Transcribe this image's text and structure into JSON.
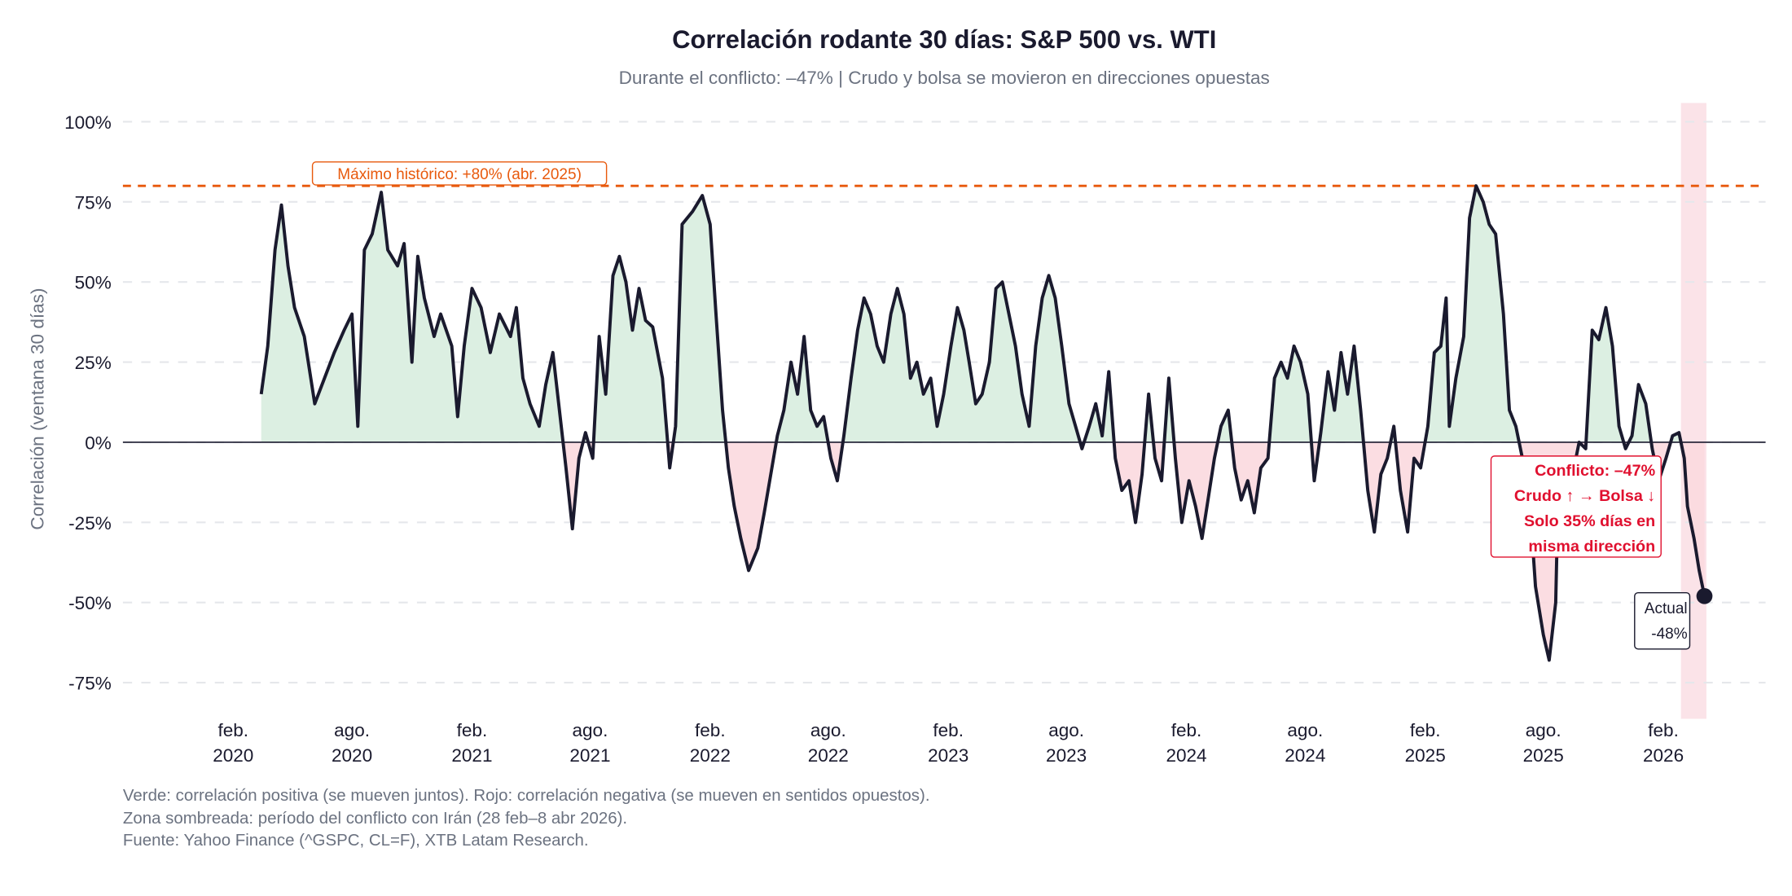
{
  "chart_data": {
    "type": "area",
    "title": "Correlación rodante 30 días: S&P 500 vs. WTI",
    "subtitle": "Durante el conflicto: –47% | Crudo y bolsa se movieron en direcciones opuestas",
    "xlabel": "",
    "ylabel": "Correlación (ventana 30 días)",
    "ylim": [
      -0.82,
      1.03
    ],
    "yticks": [
      1.0,
      0.75,
      0.5,
      0.25,
      0.0,
      -0.25,
      -0.5,
      -0.75
    ],
    "ytick_labels": [
      "100%",
      "75%",
      "50%",
      "25%",
      "0%",
      "-25%",
      "-50%",
      "-75%"
    ],
    "xlim": [
      "2019-09-15",
      "2026-09-01"
    ],
    "xticks": [
      "2020-02-01",
      "2020-08-01",
      "2021-02-01",
      "2021-08-01",
      "2022-02-01",
      "2022-08-01",
      "2023-02-01",
      "2023-08-01",
      "2024-02-01",
      "2024-08-01",
      "2025-02-01",
      "2025-08-01",
      "2026-02-01"
    ],
    "xtick_labels": [
      [
        "feb.",
        "2020"
      ],
      [
        "ago.",
        "2020"
      ],
      [
        "feb.",
        "2021"
      ],
      [
        "ago.",
        "2021"
      ],
      [
        "feb.",
        "2022"
      ],
      [
        "ago.",
        "2022"
      ],
      [
        "feb.",
        "2023"
      ],
      [
        "ago.",
        "2023"
      ],
      [
        "feb.",
        "2024"
      ],
      [
        "ago.",
        "2024"
      ],
      [
        "feb.",
        "2025"
      ],
      [
        "ago.",
        "2025"
      ],
      [
        "feb.",
        "2026"
      ]
    ],
    "grid": "horizontal dashed",
    "colors": {
      "line": "#1a1a2e",
      "positive_fill": "#dcefe2",
      "negative_fill": "#fbd9df",
      "max_line": "#e8590c",
      "conflict_shade": "#fbe3e8",
      "annotation_red": "#e0102f",
      "grid": "#e5e7eb"
    },
    "series": [
      {
        "x": [
          "2020-03-15",
          "2020-03-25",
          "2020-04-05",
          "2020-04-15",
          "2020-04-25",
          "2020-05-05",
          "2020-05-20",
          "2020-06-05",
          "2020-06-20",
          "2020-07-05",
          "2020-07-20",
          "2020-08-01",
          "2020-08-10",
          "2020-08-20",
          "2020-09-01",
          "2020-09-15",
          "2020-09-25",
          "2020-10-10",
          "2020-10-20",
          "2020-11-01",
          "2020-11-10",
          "2020-11-20",
          "2020-12-05",
          "2020-12-15",
          "2021-01-01",
          "2021-01-10",
          "2021-01-20",
          "2021-02-01",
          "2021-02-15",
          "2021-03-01",
          "2021-03-15",
          "2021-04-01",
          "2021-04-10",
          "2021-04-20",
          "2021-05-01",
          "2021-05-15",
          "2021-05-25",
          "2021-06-05",
          "2021-06-15",
          "2021-06-25",
          "2021-07-05",
          "2021-07-15",
          "2021-07-25",
          "2021-08-05",
          "2021-08-15",
          "2021-08-25",
          "2021-09-05",
          "2021-09-15",
          "2021-09-25",
          "2021-10-05",
          "2021-10-15",
          "2021-10-25",
          "2021-11-05",
          "2021-11-20",
          "2021-12-01",
          "2021-12-10",
          "2021-12-20",
          "2022-01-05",
          "2022-01-20",
          "2022-02-01",
          "2022-02-10",
          "2022-02-20",
          "2022-03-01",
          "2022-03-10",
          "2022-03-20",
          "2022-04-01",
          "2022-04-15",
          "2022-04-25",
          "2022-05-05",
          "2022-05-15",
          "2022-05-25",
          "2022-06-05",
          "2022-06-15",
          "2022-06-25",
          "2022-07-05",
          "2022-07-15",
          "2022-07-25",
          "2022-08-05",
          "2022-08-15",
          "2022-08-25",
          "2022-09-05",
          "2022-09-15",
          "2022-09-25",
          "2022-10-05",
          "2022-10-15",
          "2022-10-25",
          "2022-11-05",
          "2022-11-15",
          "2022-11-25",
          "2022-12-05",
          "2022-12-15",
          "2022-12-25",
          "2023-01-05",
          "2023-01-15",
          "2023-01-25",
          "2023-02-05",
          "2023-02-15",
          "2023-02-25",
          "2023-03-05",
          "2023-03-15",
          "2023-03-25",
          "2023-04-05",
          "2023-04-15",
          "2023-04-25",
          "2023-05-05",
          "2023-05-15",
          "2023-05-25",
          "2023-06-05",
          "2023-06-15",
          "2023-06-25",
          "2023-07-05",
          "2023-07-15",
          "2023-07-25",
          "2023-08-05",
          "2023-08-15",
          "2023-08-25",
          "2023-09-05",
          "2023-09-15",
          "2023-09-25",
          "2023-10-05",
          "2023-10-15",
          "2023-10-25",
          "2023-11-05",
          "2023-11-15",
          "2023-11-25",
          "2023-12-05",
          "2023-12-15",
          "2023-12-25",
          "2024-01-05",
          "2024-01-15",
          "2024-01-25",
          "2024-02-05",
          "2024-02-15",
          "2024-02-25",
          "2024-03-05",
          "2024-03-15",
          "2024-03-25",
          "2024-04-05",
          "2024-04-15",
          "2024-04-25",
          "2024-05-05",
          "2024-05-15",
          "2024-05-25",
          "2024-06-05",
          "2024-06-15",
          "2024-06-25",
          "2024-07-05",
          "2024-07-15",
          "2024-07-25",
          "2024-08-05",
          "2024-08-15",
          "2024-08-25",
          "2024-09-05",
          "2024-09-15",
          "2024-09-25",
          "2024-10-05",
          "2024-10-15",
          "2024-10-25",
          "2024-11-05",
          "2024-11-15",
          "2024-11-25",
          "2024-12-05",
          "2024-12-15",
          "2024-12-25",
          "2025-01-05",
          "2025-01-15",
          "2025-01-25",
          "2025-02-05",
          "2025-02-15",
          "2025-02-25",
          "2025-03-05",
          "2025-03-10",
          "2025-03-20",
          "2025-04-01",
          "2025-04-10",
          "2025-04-20",
          "2025-05-01",
          "2025-05-10",
          "2025-05-20",
          "2025-06-01",
          "2025-06-10",
          "2025-06-20",
          "2025-06-30",
          "2025-07-10",
          "2025-07-20",
          "2025-08-01",
          "2025-08-10",
          "2025-08-20",
          "2025-08-25",
          "2025-09-05",
          "2025-09-15",
          "2025-09-25",
          "2025-10-05",
          "2025-10-15",
          "2025-10-25",
          "2025-11-05",
          "2025-11-15",
          "2025-11-25",
          "2025-12-05",
          "2025-12-15",
          "2025-12-25",
          "2026-01-05",
          "2026-01-15",
          "2026-01-25",
          "2026-02-05",
          "2026-02-15",
          "2026-02-25",
          "2026-03-05",
          "2026-03-10",
          "2026-03-20",
          "2026-03-28",
          "2026-04-05"
        ],
        "y": [
          0.15,
          0.3,
          0.6,
          0.74,
          0.55,
          0.42,
          0.33,
          0.12,
          0.2,
          0.28,
          0.35,
          0.4,
          0.05,
          0.6,
          0.65,
          0.78,
          0.6,
          0.55,
          0.62,
          0.25,
          0.58,
          0.45,
          0.33,
          0.4,
          0.3,
          0.08,
          0.3,
          0.48,
          0.42,
          0.28,
          0.4,
          0.33,
          0.42,
          0.2,
          0.12,
          0.05,
          0.18,
          0.28,
          0.1,
          -0.08,
          -0.27,
          -0.05,
          0.03,
          -0.05,
          0.33,
          0.15,
          0.52,
          0.58,
          0.5,
          0.35,
          0.48,
          0.38,
          0.36,
          0.2,
          -0.08,
          0.05,
          0.68,
          0.72,
          0.77,
          0.68,
          0.4,
          0.1,
          -0.08,
          -0.2,
          -0.3,
          -0.4,
          -0.33,
          -0.22,
          -0.1,
          0.02,
          0.1,
          0.25,
          0.15,
          0.33,
          0.1,
          0.05,
          0.08,
          -0.05,
          -0.12,
          0.02,
          0.2,
          0.35,
          0.45,
          0.4,
          0.3,
          0.25,
          0.4,
          0.48,
          0.4,
          0.2,
          0.25,
          0.15,
          0.2,
          0.05,
          0.15,
          0.3,
          0.42,
          0.35,
          0.25,
          0.12,
          0.15,
          0.25,
          0.48,
          0.5,
          0.4,
          0.3,
          0.15,
          0.05,
          0.3,
          0.45,
          0.52,
          0.45,
          0.3,
          0.12,
          0.05,
          -0.02,
          0.05,
          0.12,
          0.02,
          0.22,
          -0.05,
          -0.15,
          -0.12,
          -0.25,
          -0.1,
          0.15,
          -0.05,
          -0.12,
          0.2,
          -0.05,
          -0.25,
          -0.12,
          -0.2,
          -0.3,
          -0.18,
          -0.05,
          0.05,
          0.1,
          -0.08,
          -0.18,
          -0.12,
          -0.22,
          -0.08,
          -0.05,
          0.2,
          0.25,
          0.2,
          0.3,
          0.25,
          0.15,
          -0.12,
          0.03,
          0.22,
          0.1,
          0.28,
          0.15,
          0.3,
          0.1,
          -0.15,
          -0.28,
          -0.1,
          -0.05,
          0.05,
          -0.15,
          -0.28,
          -0.05,
          -0.08,
          0.05,
          0.28,
          0.3,
          0.45,
          0.05,
          0.2,
          0.33,
          0.7,
          0.8,
          0.75,
          0.68,
          0.65,
          0.4,
          0.1,
          0.05,
          -0.05,
          -0.15,
          -0.45,
          -0.6,
          -0.68,
          -0.5,
          -0.05,
          -0.05,
          -0.1,
          0.0,
          -0.02,
          0.35,
          0.32,
          0.42,
          0.3,
          0.05,
          -0.02,
          0.02,
          0.18,
          0.12,
          -0.02,
          -0.12,
          -0.05,
          0.02,
          0.03,
          -0.05,
          -0.2,
          -0.3,
          -0.4,
          -0.48
        ]
      }
    ],
    "reference_line": {
      "value": 0.8,
      "label": "Máximo histórico: +80% (abr. 2025)"
    },
    "shaded_region": {
      "start": "2026-02-28",
      "end": "2026-04-08"
    },
    "annotations": {
      "conflict": [
        "Conflicto: –47%",
        "Crudo ↑ → Bolsa ↓",
        "Solo 35% días en",
        "misma dirección"
      ],
      "actual": [
        "Actual",
        "-48%"
      ],
      "actual_value": -0.48
    },
    "legend": "none",
    "footnotes": [
      "Verde: correlación positiva (se mueven juntos). Rojo: correlación negativa (se mueven en sentidos opuestos).",
      "Zona sombreada: período del conflicto con Irán (28 feb–8 abr 2026).",
      "Fuente: Yahoo Finance (^GSPC, CL=F), XTB Latam Research."
    ]
  }
}
